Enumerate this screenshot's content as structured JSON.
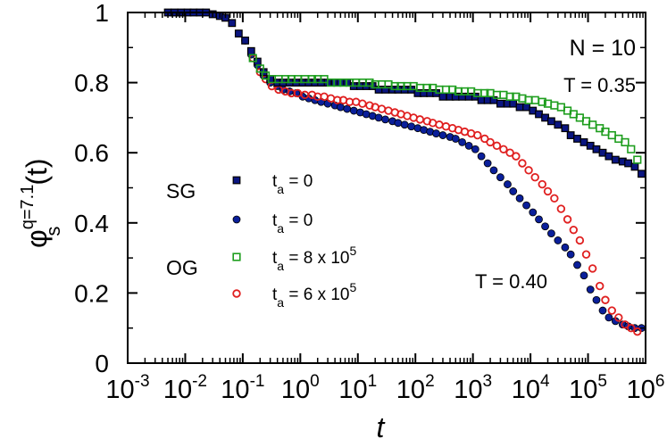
{
  "chart_data": {
    "type": "scatter",
    "xscale": "log",
    "xlim": [
      0.001,
      1000000
    ],
    "ylim": [
      0,
      1
    ],
    "xlabel": "t",
    "ylabel": {
      "base": "φ",
      "sup": "q=7.1",
      "sub": "s",
      "arg": "(t)"
    },
    "x_ticks": [
      {
        "value": 0.001,
        "base": "10",
        "exp": "-3"
      },
      {
        "value": 0.01,
        "base": "10",
        "exp": "-2"
      },
      {
        "value": 0.1,
        "base": "10",
        "exp": "-1"
      },
      {
        "value": 1,
        "base": "10",
        "exp": "0"
      },
      {
        "value": 10,
        "base": "10",
        "exp": "1"
      },
      {
        "value": 100,
        "base": "10",
        "exp": "2"
      },
      {
        "value": 1000,
        "base": "10",
        "exp": "3"
      },
      {
        "value": 10000,
        "base": "10",
        "exp": "4"
      },
      {
        "value": 100000,
        "base": "10",
        "exp": "5"
      },
      {
        "value": 1000000,
        "base": "10",
        "exp": "6"
      }
    ],
    "y_ticks": [
      {
        "value": 0,
        "label": "0"
      },
      {
        "value": 0.2,
        "label": "0.2"
      },
      {
        "value": 0.4,
        "label": "0.4"
      },
      {
        "value": 0.6,
        "label": "0.6"
      },
      {
        "value": 0.8,
        "label": "0.8"
      },
      {
        "value": 1,
        "label": "1"
      }
    ],
    "annotations": {
      "n_label": "N = 10",
      "t_low": "T = 0.35",
      "t_high": "T = 0.40"
    },
    "legend": {
      "groups": [
        {
          "label": "SG",
          "entries": [
            0,
            1
          ]
        },
        {
          "label": "OG",
          "entries": [
            2,
            3
          ]
        }
      ]
    },
    "series": [
      {
        "name": "SG, T = 0.35",
        "legend": {
          "pre": "t",
          "sub": "a",
          "post": " = 0",
          "exp": ""
        },
        "marker": "square-filled",
        "color": "#0a1580",
        "edge": "#000000",
        "x": [
          0.005,
          0.0065,
          0.0085,
          0.011,
          0.014,
          0.018,
          0.023,
          0.03,
          0.04,
          0.05,
          0.065,
          0.085,
          0.11,
          0.14,
          0.18,
          0.23,
          0.3,
          0.4,
          0.5,
          0.65,
          0.85,
          1.1,
          1.4,
          1.8,
          2.3,
          3,
          4,
          5,
          6.5,
          8.5,
          11,
          14,
          18,
          23,
          30,
          40,
          50,
          65,
          85,
          110,
          140,
          180,
          230,
          300,
          400,
          500,
          650,
          850,
          1100,
          1400,
          1800,
          2300,
          3000,
          4000,
          5000,
          6500,
          8500,
          11000,
          14000,
          18000,
          23000,
          30000,
          40000,
          50000,
          65000,
          85000,
          110000,
          140000,
          180000,
          230000,
          300000,
          400000,
          500000,
          650000,
          850000
        ],
        "y": [
          1,
          1,
          1,
          1,
          1,
          1,
          1,
          0.995,
          0.99,
          0.985,
          0.97,
          0.94,
          0.92,
          0.89,
          0.86,
          0.83,
          0.81,
          0.8,
          0.8,
          0.8,
          0.8,
          0.8,
          0.8,
          0.8,
          0.8,
          0.8,
          0.8,
          0.8,
          0.8,
          0.79,
          0.79,
          0.79,
          0.79,
          0.78,
          0.78,
          0.78,
          0.78,
          0.78,
          0.78,
          0.77,
          0.77,
          0.77,
          0.77,
          0.76,
          0.76,
          0.76,
          0.76,
          0.76,
          0.76,
          0.75,
          0.75,
          0.75,
          0.74,
          0.74,
          0.74,
          0.73,
          0.73,
          0.72,
          0.71,
          0.7,
          0.69,
          0.68,
          0.67,
          0.65,
          0.64,
          0.63,
          0.62,
          0.61,
          0.6,
          0.59,
          0.58,
          0.575,
          0.57,
          0.56,
          0.54
        ]
      },
      {
        "name": "SG, T = 0.40",
        "legend": {
          "pre": "t",
          "sub": "a",
          "post": " = 0",
          "exp": ""
        },
        "marker": "circle-filled",
        "color": "#0a1f9a",
        "edge": "#000000",
        "x": [
          0.11,
          0.14,
          0.18,
          0.23,
          0.3,
          0.4,
          0.5,
          0.65,
          0.85,
          1.1,
          1.4,
          1.8,
          2.3,
          3,
          4,
          5,
          6.5,
          8.5,
          11,
          14,
          18,
          23,
          30,
          40,
          50,
          65,
          85,
          110,
          140,
          180,
          230,
          300,
          400,
          500,
          650,
          850,
          1100,
          1400,
          1800,
          2300,
          3000,
          4000,
          5000,
          6500,
          8500,
          11000,
          14000,
          18000,
          23000,
          30000,
          40000,
          50000,
          65000,
          85000,
          110000,
          140000,
          180000,
          230000,
          300000,
          400000,
          500000,
          650000,
          850000
        ],
        "y": [
          0.92,
          0.88,
          0.85,
          0.82,
          0.8,
          0.79,
          0.78,
          0.775,
          0.77,
          0.76,
          0.755,
          0.75,
          0.745,
          0.74,
          0.735,
          0.73,
          0.725,
          0.72,
          0.715,
          0.71,
          0.705,
          0.7,
          0.695,
          0.69,
          0.685,
          0.68,
          0.675,
          0.67,
          0.665,
          0.66,
          0.655,
          0.65,
          0.645,
          0.64,
          0.63,
          0.62,
          0.61,
          0.59,
          0.57,
          0.55,
          0.53,
          0.51,
          0.49,
          0.47,
          0.45,
          0.43,
          0.41,
          0.39,
          0.37,
          0.35,
          0.33,
          0.31,
          0.28,
          0.25,
          0.21,
          0.18,
          0.15,
          0.13,
          0.12,
          0.11,
          0.105,
          0.1,
          0.1
        ]
      },
      {
        "name": "OG, T = 0.35",
        "legend": {
          "pre": "t",
          "sub": "a",
          "post": " = 8 x 10",
          "exp": "5"
        },
        "marker": "square-open",
        "color": "#1e9e1e",
        "edge": "#1e9e1e",
        "x": [
          0.15,
          0.2,
          0.25,
          0.32,
          0.42,
          0.55,
          0.7,
          0.9,
          1.2,
          1.6,
          2,
          2.6,
          3.4,
          4.4,
          5.6,
          7.2,
          9.3,
          12,
          16,
          20,
          26,
          34,
          44,
          56,
          72,
          93,
          120,
          160,
          200,
          260,
          340,
          440,
          560,
          720,
          930,
          1200,
          1600,
          2000,
          2600,
          3400,
          4400,
          5600,
          7200,
          9300,
          12000,
          16000,
          20000,
          26000,
          34000,
          44000,
          56000,
          72000,
          93000,
          120000,
          160000,
          200000,
          260000,
          340000,
          440000,
          560000,
          720000
        ],
        "y": [
          0.87,
          0.84,
          0.82,
          0.81,
          0.81,
          0.81,
          0.81,
          0.81,
          0.81,
          0.81,
          0.81,
          0.81,
          0.8,
          0.8,
          0.8,
          0.8,
          0.8,
          0.8,
          0.8,
          0.795,
          0.795,
          0.795,
          0.79,
          0.79,
          0.79,
          0.79,
          0.785,
          0.785,
          0.785,
          0.78,
          0.78,
          0.78,
          0.775,
          0.775,
          0.775,
          0.77,
          0.77,
          0.77,
          0.765,
          0.765,
          0.76,
          0.76,
          0.755,
          0.75,
          0.75,
          0.745,
          0.74,
          0.735,
          0.73,
          0.72,
          0.71,
          0.7,
          0.69,
          0.68,
          0.67,
          0.66,
          0.65,
          0.64,
          0.63,
          0.61,
          0.58
        ]
      },
      {
        "name": "OG, T = 0.40",
        "legend": {
          "pre": "t",
          "sub": "a",
          "post": " = 6 x 10",
          "exp": "5"
        },
        "marker": "circle-open",
        "color": "#e02020",
        "edge": "#e02020",
        "x": [
          0.15,
          0.2,
          0.25,
          0.32,
          0.42,
          0.55,
          0.7,
          0.9,
          1.2,
          1.6,
          2,
          2.6,
          3.4,
          4.4,
          5.6,
          7.2,
          9.3,
          12,
          16,
          20,
          26,
          34,
          44,
          56,
          72,
          93,
          120,
          160,
          200,
          260,
          340,
          440,
          560,
          720,
          930,
          1200,
          1600,
          2000,
          2600,
          3400,
          4400,
          5600,
          7200,
          9300,
          12000,
          16000,
          20000,
          26000,
          34000,
          44000,
          56000,
          72000,
          93000,
          120000,
          160000,
          200000,
          260000,
          340000,
          440000,
          560000,
          720000
        ],
        "y": [
          0.87,
          0.83,
          0.81,
          0.79,
          0.78,
          0.775,
          0.77,
          0.77,
          0.765,
          0.765,
          0.76,
          0.76,
          0.755,
          0.75,
          0.75,
          0.745,
          0.745,
          0.74,
          0.735,
          0.73,
          0.725,
          0.72,
          0.715,
          0.71,
          0.705,
          0.7,
          0.695,
          0.69,
          0.685,
          0.68,
          0.675,
          0.67,
          0.665,
          0.66,
          0.655,
          0.65,
          0.64,
          0.63,
          0.62,
          0.61,
          0.6,
          0.59,
          0.57,
          0.55,
          0.53,
          0.51,
          0.49,
          0.47,
          0.44,
          0.41,
          0.38,
          0.35,
          0.31,
          0.27,
          0.22,
          0.18,
          0.15,
          0.13,
          0.11,
          0.1,
          0.09
        ]
      }
    ]
  }
}
